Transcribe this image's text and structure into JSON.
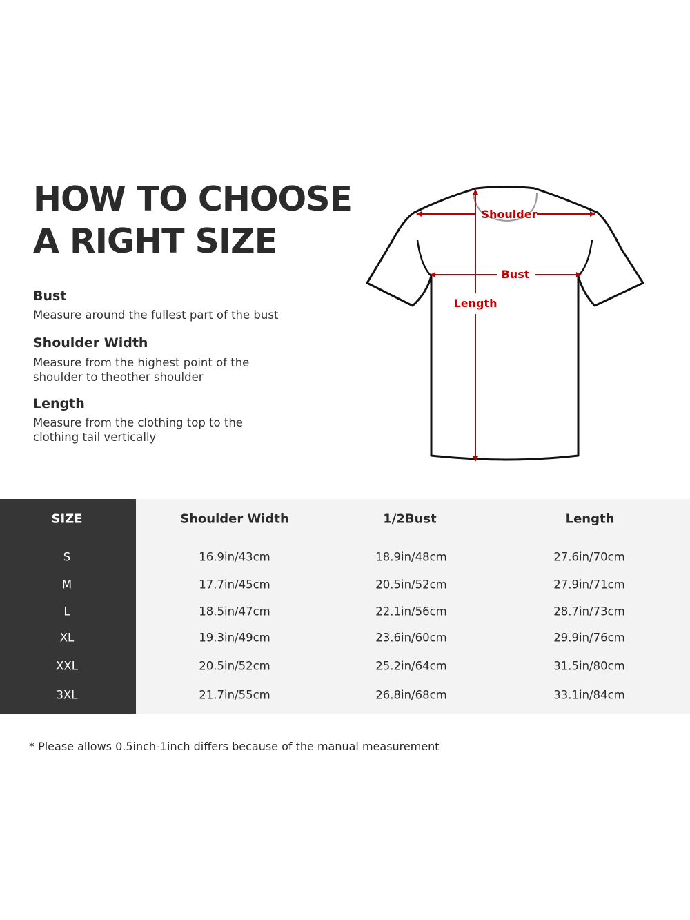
{
  "title": {
    "line1": "HOW TO CHOOSE",
    "line2": "A RIGHT SIZE"
  },
  "measurements": [
    {
      "term": "Bust",
      "description": "Measure around the fullest part of the bust"
    },
    {
      "term": "Shoulder Width",
      "description_line1": "Measure from the highest point of the",
      "description_line2": "shoulder to theother shoulder"
    },
    {
      "term": "Length",
      "description_line1": "Measure from the clothing top to the",
      "description_line2": "clothing tail vertically"
    }
  ],
  "diagram": {
    "labels": {
      "shoulder": "Shoulder",
      "bust": "Bust",
      "length": "Length"
    },
    "arrow_color": "#c00000"
  },
  "table": {
    "headers": [
      "SIZE",
      "Shoulder Width",
      "1/2Bust",
      "Length"
    ],
    "rows": [
      [
        "S",
        "16.9in/43cm",
        "18.9in/48cm",
        "27.6in/70cm"
      ],
      [
        "M",
        "17.7in/45cm",
        "20.5in/52cm",
        "27.9in/71cm"
      ],
      [
        "L",
        "18.5in/47cm",
        "22.1in/56cm",
        "28.7in/73cm"
      ],
      [
        "XL",
        "19.3in/49cm",
        "23.6in/60cm",
        "29.9in/76cm"
      ],
      [
        "XXL",
        "20.5in/52cm",
        "25.2in/64cm",
        "31.5in/80cm"
      ],
      [
        "3XL",
        "21.7in/55cm",
        "26.8in/68cm",
        "33.1in/84cm"
      ]
    ]
  },
  "note": "* Please allows 0.5inch-1inch differs because of the  manual measurement"
}
